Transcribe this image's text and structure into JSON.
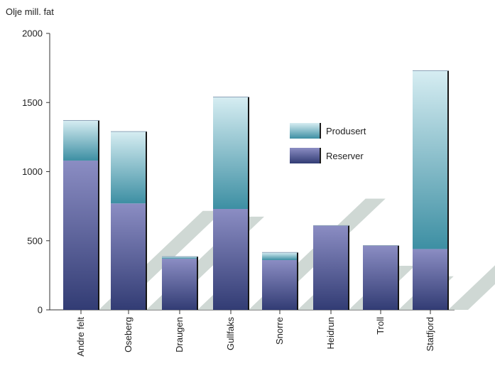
{
  "chart_data": {
    "type": "bar",
    "stacked": true,
    "ylabel": "Olje mill. fat",
    "ylim": [
      0,
      2000
    ],
    "yticks": [
      0,
      500,
      1000,
      1500,
      2000
    ],
    "grid": false,
    "legend_position": "upper middle-right",
    "categories": [
      "Andre felt",
      "Oseberg",
      "Draugen",
      "Gullfaks",
      "Snorre",
      "Heidrun",
      "Troll",
      "Statfjord"
    ],
    "series": [
      {
        "name": "Reserver",
        "values": [
          1080,
          770,
          370,
          730,
          360,
          610,
          465,
          440
        ],
        "color_top": "#8b8dc3",
        "color_bottom": "#323c74"
      },
      {
        "name": "Produsert",
        "values": [
          290,
          520,
          15,
          810,
          55,
          0,
          0,
          1290
        ],
        "color_top": "#d6edf2",
        "color_bottom": "#3d8fa3"
      }
    ],
    "shadow_color": "#c7d1cc"
  }
}
